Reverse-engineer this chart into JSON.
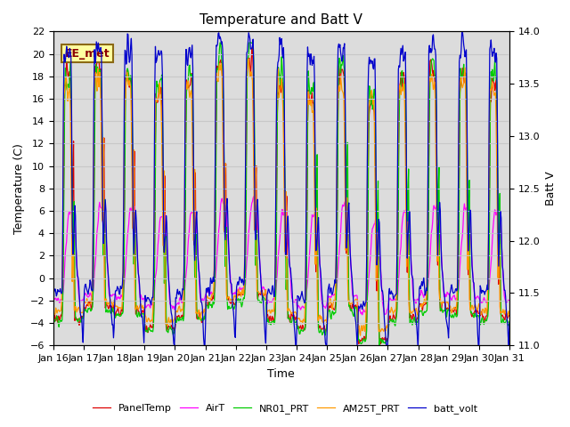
{
  "title": "Temperature and Batt V",
  "xlabel": "Time",
  "ylabel_left": "Temperature (C)",
  "ylabel_right": "Batt V",
  "ylim_left": [
    -6,
    22
  ],
  "ylim_right": [
    11.0,
    14.0
  ],
  "x_start": 16,
  "x_end": 31,
  "x_ticks": [
    16,
    17,
    18,
    19,
    20,
    21,
    22,
    23,
    24,
    25,
    26,
    27,
    28,
    29,
    30,
    31
  ],
  "x_tick_labels": [
    "Jan 16",
    "Jan 17",
    "Jan 18",
    "Jan 19",
    "Jan 20",
    "Jan 21",
    "Jan 22",
    "Jan 23",
    "Jan 24",
    "Jan 25",
    "Jan 26",
    "Jan 27",
    "Jan 28",
    "Jan 29",
    "Jan 30",
    "Jan 31"
  ],
  "annotation": "EE_met",
  "series_colors": {
    "PanelTemp": "#dd0000",
    "AirT": "#ff00ff",
    "NR01_PRT": "#00cc00",
    "AM25T_PRT": "#ff9900",
    "batt_volt": "#0000cc"
  },
  "background_color": "#dcdcdc",
  "grid_color": "#c8c8c8",
  "title_fontsize": 11,
  "axis_fontsize": 9,
  "tick_fontsize": 8,
  "figsize": [
    6.4,
    4.8
  ],
  "dpi": 100
}
